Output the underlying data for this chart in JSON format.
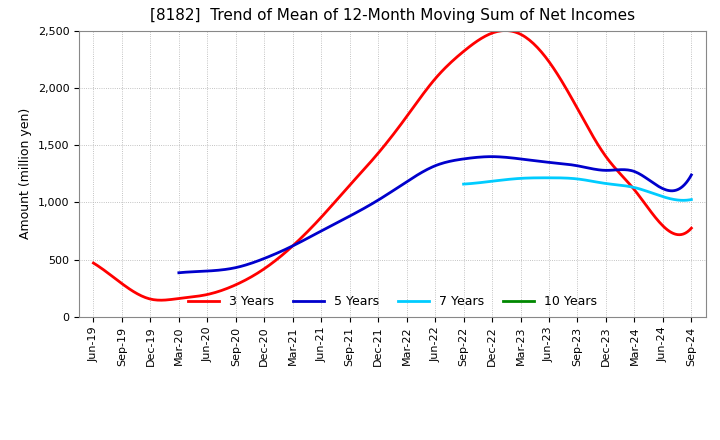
{
  "title": "[8182]  Trend of Mean of 12-Month Moving Sum of Net Incomes",
  "ylabel": "Amount (million yen)",
  "ylim": [
    0,
    2500
  ],
  "yticks": [
    0,
    500,
    1000,
    1500,
    2000,
    2500
  ],
  "background_color": "#ffffff",
  "plot_bg_color": "#ffffff",
  "grid_color": "#b0b0b0",
  "x_labels": [
    "Jun-19",
    "Sep-19",
    "Dec-19",
    "Mar-20",
    "Jun-20",
    "Sep-20",
    "Dec-20",
    "Mar-21",
    "Jun-21",
    "Sep-21",
    "Dec-21",
    "Mar-22",
    "Jun-22",
    "Sep-22",
    "Dec-22",
    "Mar-23",
    "Jun-23",
    "Sep-23",
    "Dec-23",
    "Mar-24",
    "Jun-24",
    "Sep-24"
  ],
  "series": {
    "3 Years": {
      "color": "#ff0000",
      "linewidth": 2.0,
      "data": [
        470,
        290,
        155,
        160,
        195,
        280,
        420,
        620,
        870,
        1150,
        1430,
        1750,
        2080,
        2320,
        2480,
        2470,
        2230,
        1820,
        1400,
        1110,
        795,
        775
      ]
    },
    "5 Years": {
      "color": "#0000cc",
      "linewidth": 2.0,
      "data": [
        null,
        null,
        null,
        385,
        400,
        430,
        510,
        620,
        750,
        880,
        1020,
        1180,
        1320,
        1380,
        1400,
        1380,
        1350,
        1320,
        1280,
        1270,
        1120,
        1240
      ]
    },
    "7 Years": {
      "color": "#00ccff",
      "linewidth": 2.0,
      "data": [
        null,
        null,
        null,
        null,
        null,
        null,
        null,
        null,
        null,
        null,
        null,
        null,
        null,
        1160,
        1185,
        1210,
        1215,
        1205,
        1165,
        1130,
        1050,
        1025
      ]
    },
    "10 Years": {
      "color": "#008800",
      "linewidth": 2.0,
      "data": [
        null,
        null,
        null,
        null,
        null,
        null,
        null,
        null,
        null,
        null,
        null,
        null,
        null,
        null,
        null,
        null,
        null,
        null,
        null,
        null,
        null,
        null
      ]
    }
  },
  "legend_order": [
    "3 Years",
    "5 Years",
    "7 Years",
    "10 Years"
  ],
  "title_fontsize": 11,
  "label_fontsize": 9,
  "tick_fontsize": 8
}
